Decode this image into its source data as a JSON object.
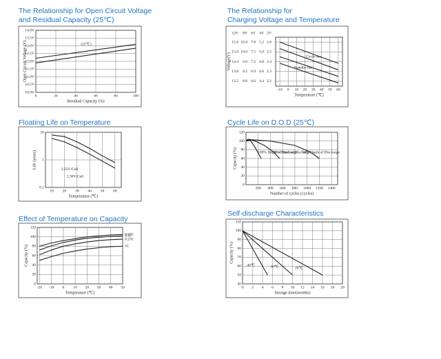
{
  "chart_data": [
    {
      "type": "line",
      "title": [
        "The Relationship for Open Circuit Voltage",
        "and Residual Capacity (25℃)"
      ],
      "xlabel": "Residual Capacity (%)",
      "ylabel": "Open Circuit Voltage (V)",
      "xlim": [
        0,
        100
      ],
      "ylim": [
        10.0,
        14.0
      ],
      "xticks": [
        0,
        20,
        40,
        60,
        80,
        100
      ],
      "yticks": [
        {
          "value": 10.0,
          "label": "10.0V"
        },
        {
          "value": 10.5,
          "label": "10.5V"
        },
        {
          "value": 11.0,
          "label": "11.0V"
        },
        {
          "value": 11.5,
          "label": "11.5V"
        },
        {
          "value": 12.0,
          "label": "12.0V"
        },
        {
          "value": 12.5,
          "label": "12.5V"
        },
        {
          "value": 13.0,
          "label": "13.0V"
        },
        {
          "value": 13.5,
          "label": "13.5V"
        },
        {
          "value": 14.0,
          "label": "14.0V"
        }
      ],
      "grid": true,
      "annotations": [
        "(25℃)"
      ],
      "series": [
        {
          "color": "#222",
          "x": [
            0,
            100
          ],
          "values": [
            12.2,
            13.1
          ]
        },
        {
          "color": "#222",
          "x": [
            0,
            100
          ],
          "values": [
            11.9,
            12.85
          ]
        }
      ]
    },
    {
      "type": "line",
      "title": [
        "The Relationship for",
        "Charging Voltage and Temperature"
      ],
      "xlabel": "Temperature (℃)",
      "ylabel": "Voltage(V)",
      "xlim": [
        -15,
        65
      ],
      "ylim": [
        12.9,
        15.9
      ],
      "xticks": [
        -10,
        0,
        10,
        20,
        30,
        40,
        50,
        60
      ],
      "yaxis_header": "12V",
      "yticks": [
        15.6,
        {
          "value": 15.0,
          "label": "15.0"
        },
        14.4,
        13.8,
        13.2
      ],
      "extra_ytick_columns": [
        {
          "header": "8V",
          "labels": [
            "10.4",
            "10.0",
            "9.6",
            "9.2",
            "8.8"
          ]
        },
        {
          "header": "6V",
          "labels": [
            "7.8",
            "7.5",
            "7.2",
            "6.9",
            "6.6"
          ]
        },
        {
          "header": "4V",
          "labels": [
            "5.2",
            "5.0",
            "4.8",
            "4.6",
            "4.4"
          ]
        },
        {
          "header": "2V",
          "labels": [
            "2.6",
            "2.5",
            "2.4",
            "2.3",
            "2.2"
          ]
        }
      ],
      "grid": true,
      "annotations": [
        "Cycle use",
        "Standby use"
      ],
      "series": [
        {
          "color": "#222",
          "x": [
            -10,
            60
          ],
          "values": [
            15.6,
            14.3
          ]
        },
        {
          "color": "#222",
          "x": [
            -10,
            60
          ],
          "values": [
            15.2,
            13.9
          ]
        },
        {
          "color": "#222",
          "x": [
            -10,
            60
          ],
          "values": [
            14.7,
            13.5
          ]
        },
        {
          "color": "#222",
          "x": [
            -10,
            60
          ],
          "values": [
            14.3,
            13.1
          ]
        }
      ]
    },
    {
      "type": "line",
      "title": [
        "Floating Life on Temperature"
      ],
      "xlabel": "Temperature (℃)",
      "ylabel": "Life (years)",
      "xlim": [
        5,
        65
      ],
      "ylim": [
        0.1,
        10
      ],
      "ylog": true,
      "xticks": [
        10,
        20,
        30,
        40,
        50,
        60
      ],
      "yticks": [
        0.1,
        1,
        10
      ],
      "grid": true,
      "annotations": [],
      "series": [
        {
          "name": "2.25V/Cell",
          "color": "#222",
          "x": [
            10,
            20,
            30,
            40,
            50,
            60
          ],
          "values": [
            8,
            7,
            4.5,
            2.6,
            1.4,
            0.8
          ]
        },
        {
          "name": "2.30V/Cell",
          "color": "#222",
          "x": [
            10,
            20,
            30,
            40,
            50,
            60
          ],
          "values": [
            6,
            4.5,
            2.8,
            1.6,
            0.9,
            0.5
          ]
        }
      ]
    },
    {
      "type": "line",
      "title": [
        "Cycle Life on D.O.D (25℃)"
      ],
      "xlabel": "Number of cycles (cycles)",
      "ylabel": "Capacity (%)",
      "xlim": [
        0,
        1500
      ],
      "ylim": [
        0,
        120
      ],
      "xticks": [
        200,
        400,
        600,
        800,
        1000,
        1200,
        1400
      ],
      "yticks": [
        0,
        20,
        40,
        60,
        80,
        100,
        120
      ],
      "grid": true,
      "annotations": [],
      "series": [
        {
          "name": "100% Depth of Discharge",
          "color": "#222",
          "x": [
            0,
            30,
            80,
            150,
            200,
            250
          ],
          "values": [
            100,
            104,
            100,
            85,
            72,
            60
          ]
        },
        {
          "name": "50% Depth of Discharge",
          "color": "#222",
          "x": [
            0,
            50,
            150,
            300,
            450,
            550
          ],
          "values": [
            100,
            104,
            100,
            90,
            75,
            60
          ]
        },
        {
          "name": "30% Depth of Discharge",
          "color": "#222",
          "x": [
            0,
            100,
            400,
            800,
            1050,
            1200
          ],
          "values": [
            100,
            103,
            100,
            90,
            75,
            60
          ]
        }
      ]
    },
    {
      "type": "line",
      "title": [
        "Effect of Temperature on Capacity"
      ],
      "xlabel": "Temperature (℃)",
      "ylabel": "Capacity (%)",
      "xlim": [
        -22,
        50
      ],
      "ylim": [
        0,
        120
      ],
      "xticks": [
        -20,
        -10,
        0,
        10,
        20,
        30,
        40,
        50
      ],
      "yticks": [
        0,
        20,
        40,
        60,
        80,
        100,
        120
      ],
      "grid": true,
      "annotations": [],
      "series": [
        {
          "name": "0.05C",
          "color": "#222",
          "x": [
            -20,
            -10,
            0,
            10,
            20,
            30,
            40,
            50
          ],
          "values": [
            80,
            87,
            92,
            96,
            100,
            102,
            104,
            105
          ]
        },
        {
          "name": "0.1C",
          "color": "#222",
          "x": [
            -20,
            -10,
            0,
            10,
            20,
            30,
            40,
            50
          ],
          "values": [
            72,
            81,
            88,
            93,
            97,
            99,
            101,
            102
          ]
        },
        {
          "name": "0.25C",
          "color": "#222",
          "x": [
            -20,
            -10,
            0,
            10,
            20,
            30,
            40,
            50
          ],
          "values": [
            62,
            72,
            80,
            85,
            89,
            92,
            94,
            95
          ]
        },
        {
          "name": "1C",
          "color": "#222",
          "x": [
            -20,
            -10,
            0,
            10,
            20,
            30,
            40,
            50
          ],
          "values": [
            50,
            58,
            65,
            70,
            74,
            77,
            79,
            80
          ]
        }
      ]
    },
    {
      "type": "line",
      "title": [
        "Self-discharge Characteristics"
      ],
      "xlabel": "Storage time(months)",
      "ylabel": "Capacity (%)",
      "xlim": [
        0,
        20
      ],
      "ylim": [
        40,
        110
      ],
      "xticks": [
        0,
        2,
        4,
        6,
        8,
        10,
        12,
        14,
        16,
        18,
        20
      ],
      "yticks": [
        40,
        50,
        60,
        70,
        80,
        90,
        100,
        110
      ],
      "grid": true,
      "annotations": [],
      "series": [
        {
          "name": "40℃",
          "color": "#222",
          "x": [
            0,
            5
          ],
          "values": [
            100,
            50
          ]
        },
        {
          "name": "30℃",
          "color": "#222",
          "x": [
            0,
            10
          ],
          "values": [
            100,
            50
          ]
        },
        {
          "name": "20℃",
          "color": "#222",
          "x": [
            0,
            16
          ],
          "values": [
            100,
            50
          ]
        }
      ]
    }
  ]
}
